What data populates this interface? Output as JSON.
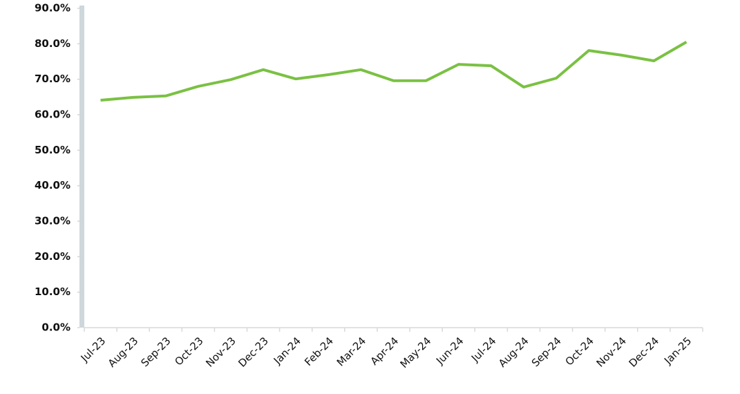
{
  "chart_data": {
    "type": "line",
    "categories": [
      "Jul-23",
      "Aug-23",
      "Sep-23",
      "Oct-23",
      "Nov-23",
      "Dec-23",
      "Jan-24",
      "Feb-24",
      "Mar-24",
      "Apr-24",
      "May-24",
      "Jun-24",
      "Jul-24",
      "Aug-24",
      "Sep-24",
      "Oct-24",
      "Nov-24",
      "Dec-24",
      "Jan-25"
    ],
    "series": [
      {
        "color": "#7ac143",
        "values": [
          64.1,
          64.9,
          65.3,
          68.0,
          69.9,
          72.7,
          70.1,
          71.3,
          72.7,
          69.6,
          69.6,
          74.2,
          73.8,
          67.8,
          70.3,
          78.1,
          76.8,
          75.2,
          80.5
        ]
      }
    ],
    "ylim": [
      0,
      90
    ],
    "yticks": [
      {
        "value": 0,
        "label": "0.0%"
      },
      {
        "value": 10,
        "label": "10.0%"
      },
      {
        "value": 20,
        "label": "20.0%"
      },
      {
        "value": 30,
        "label": "30.0%"
      },
      {
        "value": 40,
        "label": "40.0%"
      },
      {
        "value": 50,
        "label": "50.0%"
      },
      {
        "value": 60,
        "label": "60.0%"
      },
      {
        "value": 70,
        "label": "70.0%"
      },
      {
        "value": 80,
        "label": "80.0%"
      },
      {
        "value": 90,
        "label": "90.0%"
      }
    ],
    "grid": false
  }
}
